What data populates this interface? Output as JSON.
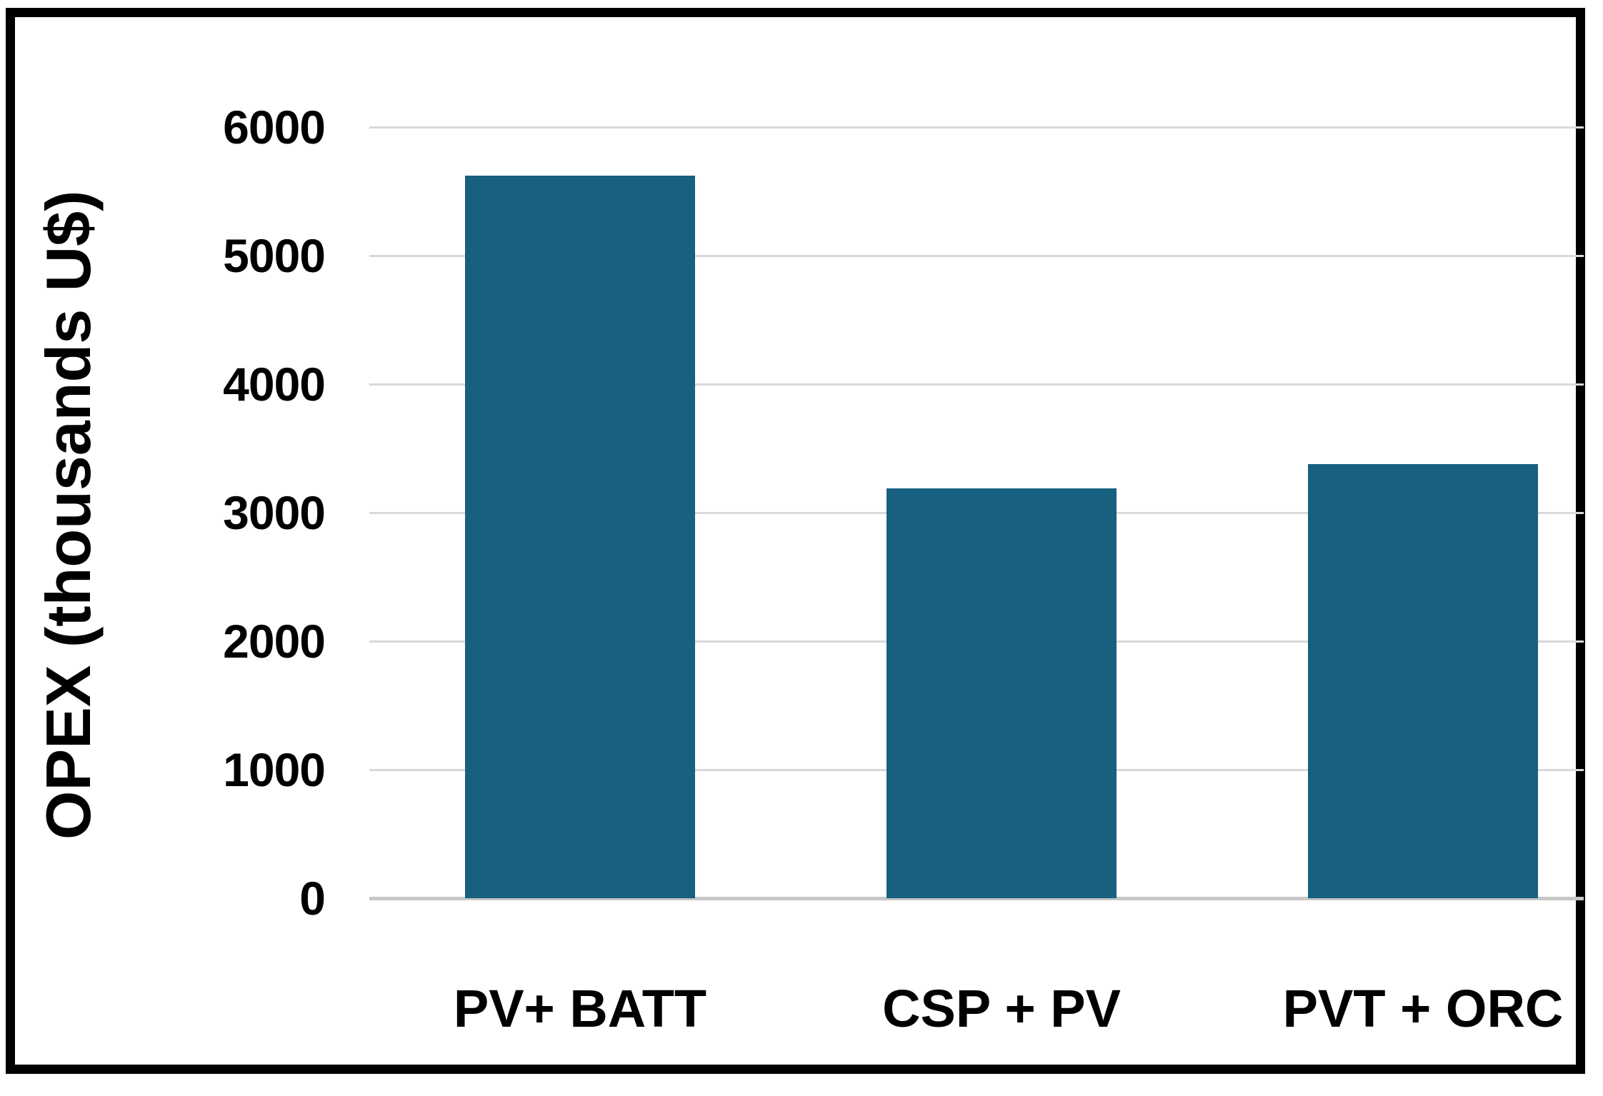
{
  "frame": {
    "background_color": "#ffffff",
    "border_color": "#000000"
  },
  "chart_data": {
    "type": "bar",
    "title": "",
    "categories": [
      "PV+ BATT",
      "CSP + PV",
      "PVT + ORC"
    ],
    "values": [
      5620,
      3190,
      3380
    ],
    "xlabel": "",
    "ylabel": "OPEX (thousands U$)",
    "ylim": [
      0,
      6000
    ],
    "yticks": [
      0,
      1000,
      2000,
      3000,
      4000,
      5000,
      6000
    ],
    "grid": "horizontal",
    "legend": "none",
    "bar_color": "#18607F",
    "gridline_color": "#D9D9D9",
    "axis_line_color": "#C6C6C6",
    "text_color": "#000000"
  }
}
